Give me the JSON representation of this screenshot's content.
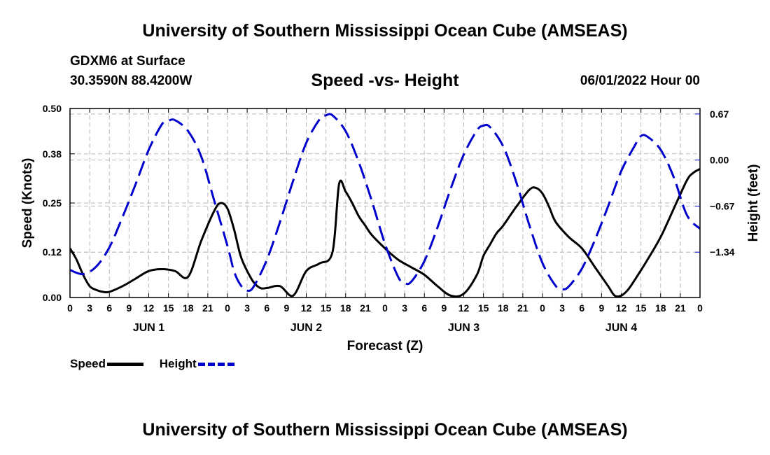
{
  "header": {
    "title": "University of Southern Mississippi Ocean Cube (AMSEAS)",
    "model": "GDXM6 at Surface",
    "coords": "30.3590N  88.4200W",
    "chart_title": "Speed -vs- Height",
    "datetime": "06/01/2022 Hour 00"
  },
  "footer": {
    "title": "University of Southern Mississippi Ocean Cube (AMSEAS)"
  },
  "legend": {
    "speed_label": "Speed",
    "height_label": "Height"
  },
  "colors": {
    "speed": "#000000",
    "height": "#0000cc"
  },
  "chart_data": {
    "type": "line",
    "title": "Speed -vs- Height",
    "xlabel": "Forecast (Z)",
    "ylabel": "Speed (Knots)",
    "y2label": "Height (feet)",
    "ylim": [
      0,
      0.5
    ],
    "y2lim": [
      -2.0,
      0.75
    ],
    "yticks": [
      0.0,
      0.12,
      0.25,
      0.38,
      0.5
    ],
    "ytick_labels": [
      "0.00",
      "0.12",
      "0.25",
      "0.38",
      "0.50"
    ],
    "y2ticks": [
      0.67,
      0.0,
      -0.67,
      -1.34
    ],
    "y2tick_labels": [
      "0.67",
      "0.00",
      "−0.67",
      "−1.34"
    ],
    "xlim": [
      0,
      96
    ],
    "xticks": [
      0,
      3,
      6,
      9,
      12,
      15,
      18,
      21,
      24,
      27,
      30,
      33,
      36,
      39,
      42,
      45,
      48,
      51,
      54,
      57,
      60,
      63,
      66,
      69,
      72,
      75,
      78,
      81,
      84,
      87,
      90,
      93,
      96
    ],
    "xtick_labels": [
      "0",
      "3",
      "6",
      "9",
      "12",
      "15",
      "18",
      "21",
      "0",
      "3",
      "6",
      "9",
      "12",
      "15",
      "18",
      "21",
      "0",
      "3",
      "6",
      "9",
      "12",
      "15",
      "18",
      "21",
      "0",
      "3",
      "6",
      "9",
      "12",
      "15",
      "18",
      "21",
      "0"
    ],
    "day_labels": [
      {
        "x": 12,
        "label": "JUN 1"
      },
      {
        "x": 36,
        "label": "JUN 2"
      },
      {
        "x": 60,
        "label": "JUN 3"
      },
      {
        "x": 84,
        "label": "JUN 4"
      }
    ],
    "grid": true,
    "series": [
      {
        "name": "Speed",
        "axis": "left",
        "style": "solid",
        "x": [
          0,
          1,
          2,
          3,
          4,
          5,
          6,
          8,
          10,
          12,
          14,
          16,
          18,
          20,
          22,
          23,
          24,
          25,
          26,
          27,
          28,
          29,
          30,
          32,
          34,
          36,
          38,
          40,
          41,
          42,
          43,
          44,
          45,
          46,
          48,
          50,
          52,
          54,
          56,
          58,
          60,
          62,
          63,
          64,
          65,
          66,
          68,
          70,
          71,
          72,
          73,
          74,
          76,
          78,
          80,
          82,
          83,
          84,
          85,
          86,
          88,
          90,
          92,
          94,
          95,
          96
        ],
        "y": [
          0.13,
          0.1,
          0.06,
          0.03,
          0.02,
          0.015,
          0.015,
          0.03,
          0.05,
          0.07,
          0.075,
          0.07,
          0.055,
          0.15,
          0.23,
          0.25,
          0.235,
          0.18,
          0.11,
          0.07,
          0.04,
          0.025,
          0.025,
          0.03,
          0.005,
          0.07,
          0.09,
          0.12,
          0.3,
          0.28,
          0.25,
          0.215,
          0.19,
          0.165,
          0.13,
          0.1,
          0.08,
          0.06,
          0.03,
          0.005,
          0.01,
          0.06,
          0.11,
          0.14,
          0.17,
          0.19,
          0.24,
          0.285,
          0.29,
          0.275,
          0.24,
          0.2,
          0.16,
          0.13,
          0.08,
          0.03,
          0.005,
          0.005,
          0.02,
          0.045,
          0.1,
          0.16,
          0.235,
          0.31,
          0.33,
          0.34
        ]
      },
      {
        "name": "Height",
        "axis": "right",
        "style": "dashed",
        "x": [
          0,
          2,
          4,
          6,
          8,
          10,
          12,
          14,
          15,
          16,
          18,
          20,
          22,
          24,
          25,
          26,
          27,
          28,
          30,
          32,
          34,
          36,
          38,
          39,
          40,
          42,
          44,
          46,
          48,
          50,
          51,
          52,
          54,
          56,
          58,
          60,
          62,
          63,
          64,
          66,
          68,
          70,
          72,
          74,
          75,
          76,
          78,
          80,
          82,
          84,
          86,
          87,
          88,
          90,
          92,
          94,
          96
        ],
        "y": [
          -1.6,
          -1.66,
          -1.55,
          -1.27,
          -0.83,
          -0.35,
          0.15,
          0.52,
          0.57,
          0.58,
          0.42,
          0.05,
          -0.6,
          -1.25,
          -1.62,
          -1.82,
          -1.9,
          -1.84,
          -1.45,
          -0.9,
          -0.3,
          0.25,
          0.59,
          0.65,
          0.65,
          0.42,
          -0.03,
          -0.6,
          -1.22,
          -1.7,
          -1.79,
          -1.77,
          -1.47,
          -0.98,
          -0.42,
          0.08,
          0.43,
          0.5,
          0.48,
          0.2,
          -0.32,
          -0.95,
          -1.5,
          -1.83,
          -1.88,
          -1.84,
          -1.58,
          -1.16,
          -0.67,
          -0.16,
          0.2,
          0.35,
          0.34,
          0.15,
          -0.25,
          -0.8,
          -1.0
        ]
      }
    ]
  }
}
